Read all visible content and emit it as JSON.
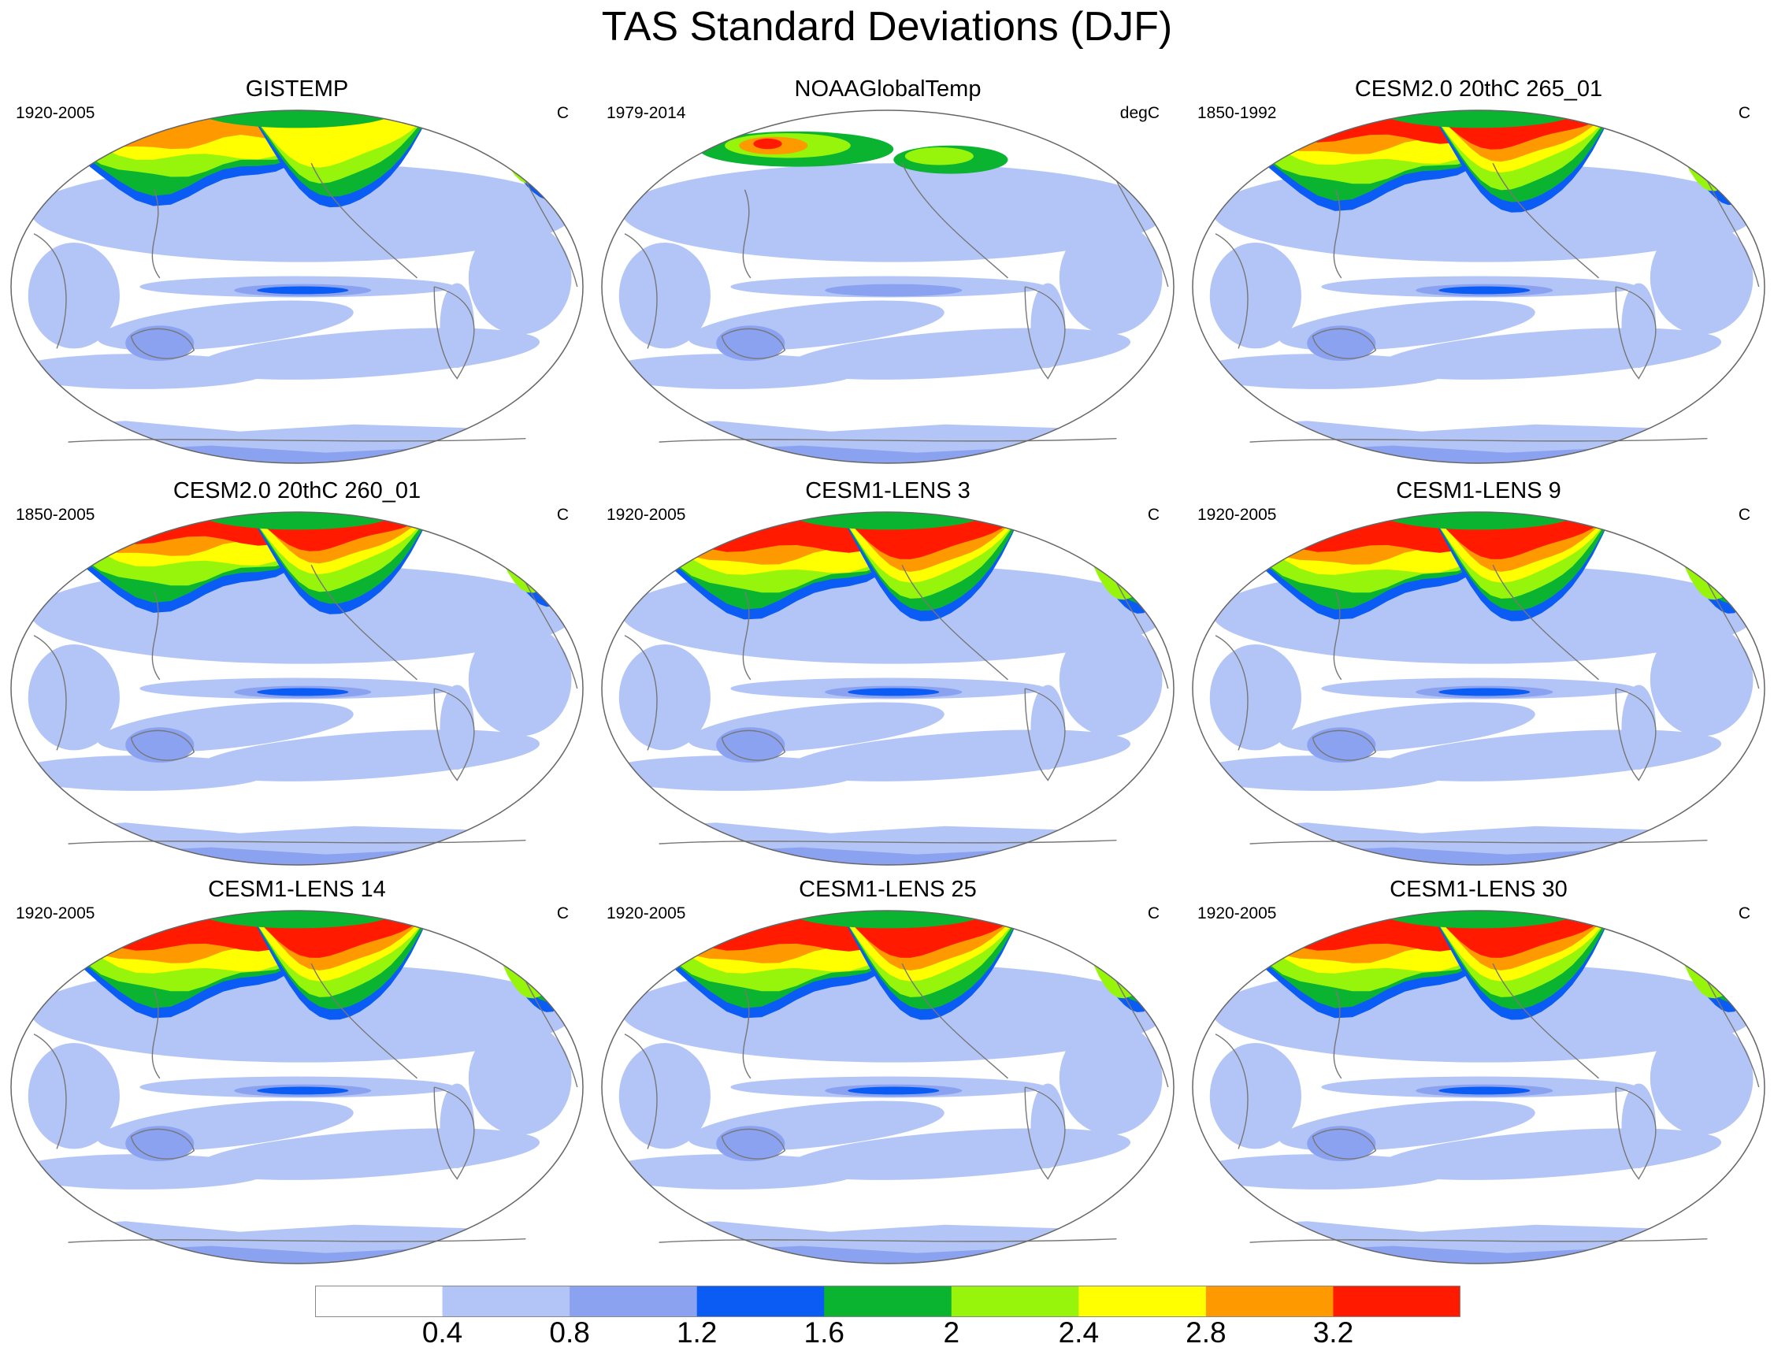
{
  "title": "TAS Standard Deviations (DJF)",
  "chart_data": {
    "type": "heatmap",
    "projection": "Robinson (Pacific-centered)",
    "colorbar": {
      "levels": [
        "0.4",
        "0.8",
        "1.2",
        "1.6",
        "2",
        "2.4",
        "2.8",
        "3.2"
      ],
      "colors": [
        "#ffffff",
        "#b3c5f6",
        "#8ba2f1",
        "#0a5cf5",
        "#0bb430",
        "#96f50b",
        "#ffff00",
        "#ff9900",
        "#ff1a00"
      ]
    },
    "panels": [
      {
        "title": "GISTEMP",
        "years": "1920-2005",
        "units": "C",
        "variant": "gistemp"
      },
      {
        "title": "NOAAGlobalTemp",
        "years": "1979-2014",
        "units": "degC",
        "variant": "noaa"
      },
      {
        "title": "CESM2.0 20thC 265_01",
        "years": "1850-1992",
        "units": "C",
        "variant": "cesm2a"
      },
      {
        "title": "CESM2.0 20thC 260_01",
        "years": "1850-2005",
        "units": "C",
        "variant": "cesm2b"
      },
      {
        "title": "CESM1-LENS 3",
        "years": "1920-2005",
        "units": "C",
        "variant": "lens"
      },
      {
        "title": "CESM1-LENS 9",
        "years": "1920-2005",
        "units": "C",
        "variant": "lens"
      },
      {
        "title": "CESM1-LENS 14",
        "years": "1920-2005",
        "units": "C",
        "variant": "lens"
      },
      {
        "title": "CESM1-LENS 25",
        "years": "1920-2005",
        "units": "C",
        "variant": "lens"
      },
      {
        "title": "CESM1-LENS 30",
        "years": "1920-2005",
        "units": "C",
        "variant": "lens"
      }
    ]
  }
}
